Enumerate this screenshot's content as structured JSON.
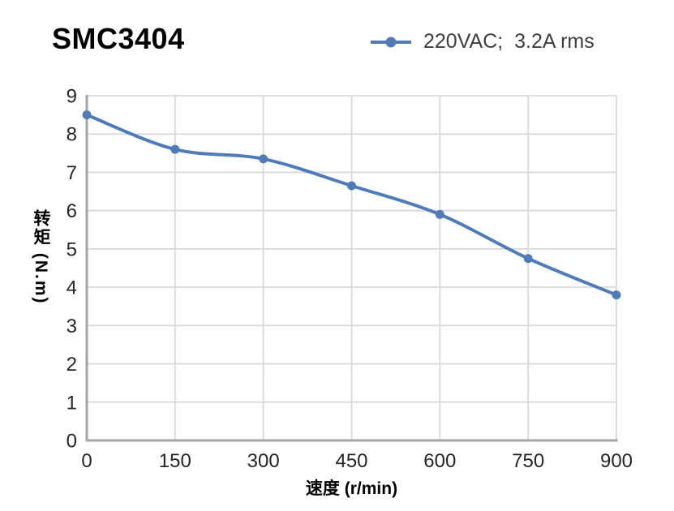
{
  "header": {
    "title": "SMC3404"
  },
  "legend": {
    "label": "220VAC;  3.2A rms",
    "color": "#4F7CB9"
  },
  "chart_data": {
    "type": "line",
    "title": "SMC3404",
    "x": [
      0,
      150,
      300,
      450,
      600,
      750,
      900
    ],
    "series": [
      {
        "name": "220VAC;  3.2A rms",
        "color": "#4F7CB9",
        "values": [
          8.5,
          7.6,
          7.35,
          6.65,
          5.9,
          4.75,
          3.8
        ]
      }
    ],
    "xlabel": "速度 (r/min)",
    "ylabel": "转矩 (N.m)",
    "xlim": [
      0,
      900
    ],
    "ylim": [
      0,
      9
    ],
    "x_ticks": [
      0,
      150,
      300,
      450,
      600,
      750,
      900
    ],
    "y_ticks": [
      0,
      1,
      2,
      3,
      4,
      5,
      6,
      7,
      8,
      9
    ],
    "grid": true,
    "legend_position": "top-right",
    "line_style": "smooth-with-markers",
    "colors": {
      "line": "#4F7CB9",
      "gridline": "#D9D9D9",
      "axis": "#A6A6A6",
      "tick_label": "#262626",
      "title": "#000000",
      "legend_text": "#3F3F3F"
    }
  }
}
